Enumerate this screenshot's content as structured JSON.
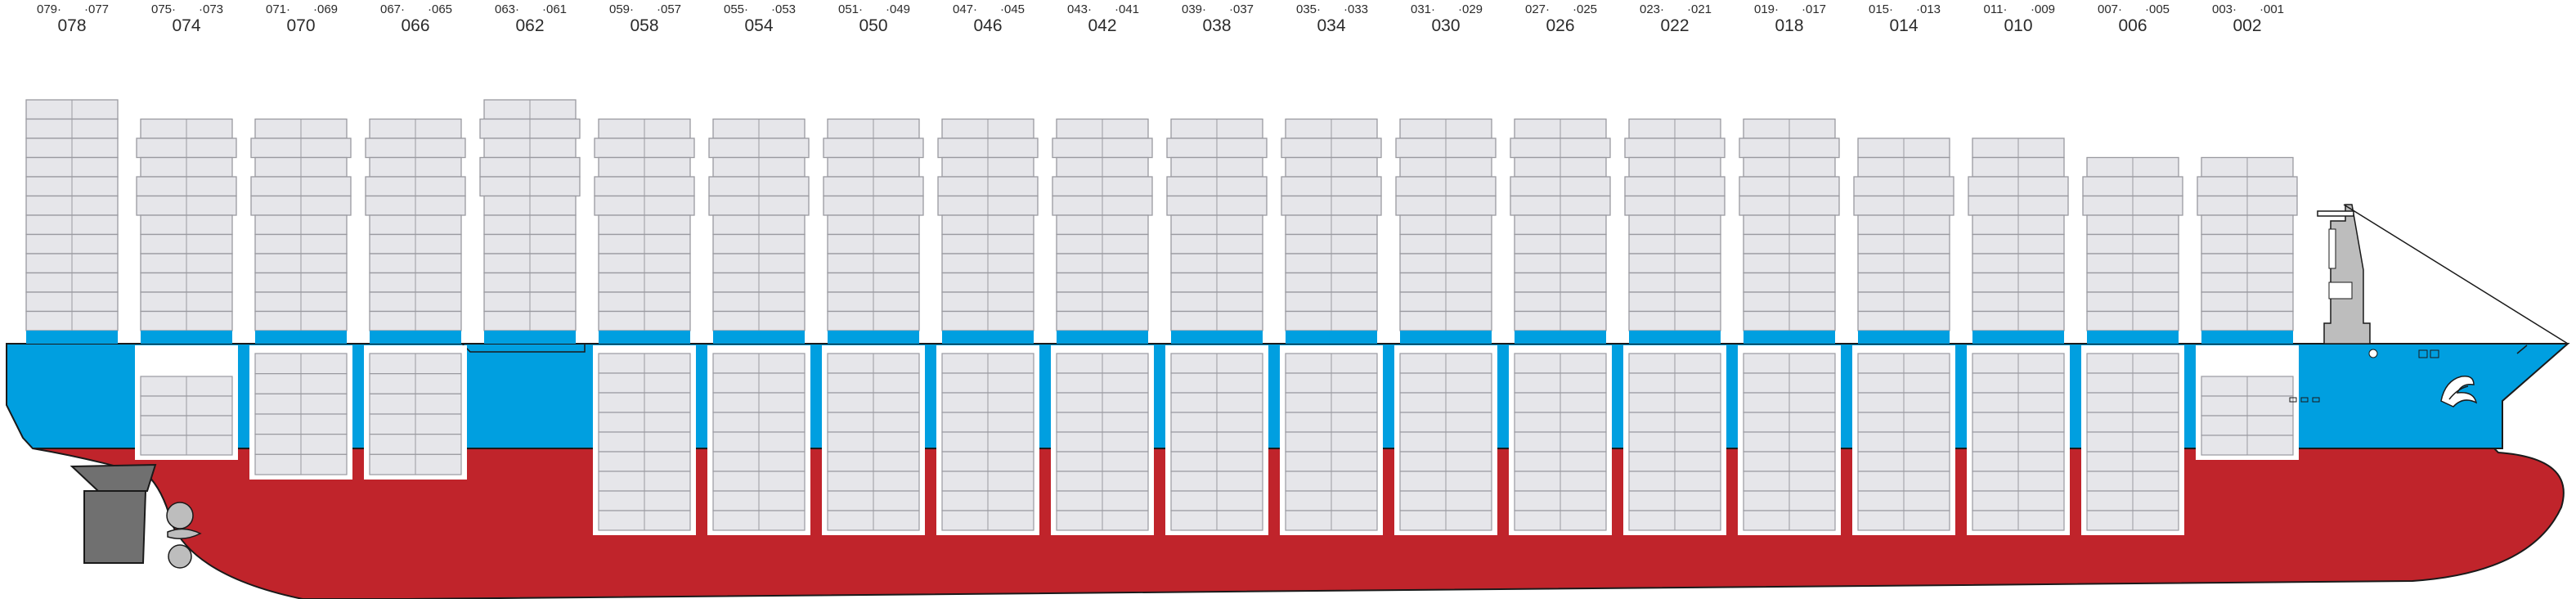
{
  "colors": {
    "hull_blue": "#009fe0",
    "hull_red": "#c0242b",
    "container_fill": "#e6e6ea",
    "container_stroke": "#9a9aa0",
    "hatch_cover": "#ffffff",
    "steel_gray": "#707070",
    "outline": "#1a1a1a"
  },
  "bays": [
    {
      "id": "078",
      "pair": [
        "079",
        "077"
      ],
      "deck_tiers": 12,
      "deck_wide_tiers": [],
      "hold": "none"
    },
    {
      "id": "074",
      "pair": [
        "075",
        "073"
      ],
      "deck_tiers": 11,
      "deck_wide_tiers": [
        1,
        3,
        4
      ],
      "hold": "short"
    },
    {
      "id": "070",
      "pair": [
        "071",
        "069"
      ],
      "deck_tiers": 11,
      "deck_wide_tiers": [
        1,
        3,
        4
      ],
      "hold": "mid"
    },
    {
      "id": "066",
      "pair": [
        "067",
        "065"
      ],
      "deck_tiers": 11,
      "deck_wide_tiers": [
        1,
        3,
        4
      ],
      "hold": "mid"
    },
    {
      "id": "062",
      "pair": [
        "063",
        "061"
      ],
      "deck_tiers": 12,
      "deck_wide_tiers": [
        1,
        3,
        4
      ],
      "hold": "none"
    },
    {
      "id": "058",
      "pair": [
        "059",
        "057"
      ],
      "deck_tiers": 11,
      "deck_wide_tiers": [
        1,
        3,
        4
      ],
      "hold": "full"
    },
    {
      "id": "054",
      "pair": [
        "055",
        "053"
      ],
      "deck_tiers": 11,
      "deck_wide_tiers": [
        1,
        3,
        4
      ],
      "hold": "full"
    },
    {
      "id": "050",
      "pair": [
        "051",
        "049"
      ],
      "deck_tiers": 11,
      "deck_wide_tiers": [
        1,
        3,
        4
      ],
      "hold": "full"
    },
    {
      "id": "046",
      "pair": [
        "047",
        "045"
      ],
      "deck_tiers": 11,
      "deck_wide_tiers": [
        1,
        3,
        4
      ],
      "hold": "full"
    },
    {
      "id": "042",
      "pair": [
        "043",
        "041"
      ],
      "deck_tiers": 11,
      "deck_wide_tiers": [
        1,
        3,
        4
      ],
      "hold": "full"
    },
    {
      "id": "038",
      "pair": [
        "039",
        "037"
      ],
      "deck_tiers": 11,
      "deck_wide_tiers": [
        1,
        3,
        4
      ],
      "hold": "full"
    },
    {
      "id": "034",
      "pair": [
        "035",
        "033"
      ],
      "deck_tiers": 11,
      "deck_wide_tiers": [
        1,
        3,
        4
      ],
      "hold": "full"
    },
    {
      "id": "030",
      "pair": [
        "031",
        "029"
      ],
      "deck_tiers": 11,
      "deck_wide_tiers": [
        1,
        3,
        4
      ],
      "hold": "full"
    },
    {
      "id": "026",
      "pair": [
        "027",
        "025"
      ],
      "deck_tiers": 11,
      "deck_wide_tiers": [
        1,
        3,
        4
      ],
      "hold": "full"
    },
    {
      "id": "022",
      "pair": [
        "023",
        "021"
      ],
      "deck_tiers": 11,
      "deck_wide_tiers": [
        1,
        3,
        4
      ],
      "hold": "full"
    },
    {
      "id": "018",
      "pair": [
        "019",
        "017"
      ],
      "deck_tiers": 11,
      "deck_wide_tiers": [
        1,
        3,
        4
      ],
      "hold": "full"
    },
    {
      "id": "014",
      "pair": [
        "015",
        "013"
      ],
      "deck_tiers": 10,
      "deck_wide_tiers": [
        2,
        3
      ],
      "hold": "full"
    },
    {
      "id": "010",
      "pair": [
        "011",
        "009"
      ],
      "deck_tiers": 10,
      "deck_wide_tiers": [
        2,
        3
      ],
      "hold": "full"
    },
    {
      "id": "006",
      "pair": [
        "007",
        "005"
      ],
      "deck_tiers": 9,
      "deck_wide_tiers": [
        1,
        2
      ],
      "hold": "full"
    },
    {
      "id": "002",
      "pair": [
        "003",
        "001"
      ],
      "deck_tiers": 9,
      "deck_wide_tiers": [
        1,
        2
      ],
      "hold": "short"
    }
  ]
}
